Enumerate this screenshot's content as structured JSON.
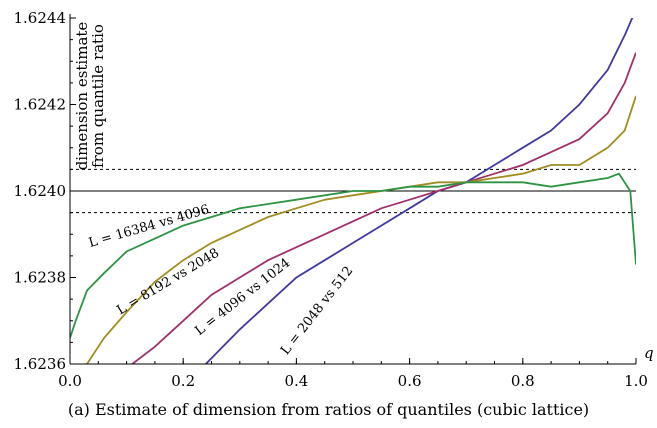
{
  "caption": "(a) Estimate of dimension from ratios of quantiles (cubic lattice)",
  "chart_data": {
    "type": "line",
    "title": "",
    "xlabel": "q",
    "ylabel": "dimension estimate from quantile ratio",
    "xlim": [
      0.0,
      1.0
    ],
    "ylim": [
      1.6236,
      1.6244
    ],
    "x_ticks": [
      "0.0",
      "0.2",
      "0.4",
      "0.6",
      "0.8",
      "1.0"
    ],
    "y_ticks": [
      "1.6236",
      "1.6238",
      "1.6240",
      "1.6242",
      "1.6244"
    ],
    "reference_lines": [
      {
        "y": 1.624,
        "style": "solid"
      },
      {
        "y": 1.62405,
        "style": "dashed"
      },
      {
        "y": 1.62395,
        "style": "dashed"
      }
    ],
    "series": [
      {
        "name": "L = 2048 vs 512",
        "color": "#3f3a9e",
        "x": [
          0.24,
          0.3,
          0.35,
          0.4,
          0.45,
          0.5,
          0.55,
          0.6,
          0.65,
          0.7,
          0.75,
          0.8,
          0.85,
          0.9,
          0.95,
          0.98,
          1.0
        ],
        "y": [
          1.6236,
          1.62368,
          1.62374,
          1.6238,
          1.62384,
          1.62388,
          1.62392,
          1.62396,
          1.624,
          1.62402,
          1.62406,
          1.6241,
          1.62414,
          1.6242,
          1.62428,
          1.62436,
          1.62442
        ]
      },
      {
        "name": "L = 4096 vs 1024",
        "color": "#a0306a",
        "x": [
          0.11,
          0.15,
          0.2,
          0.25,
          0.3,
          0.35,
          0.4,
          0.45,
          0.5,
          0.55,
          0.6,
          0.65,
          0.7,
          0.75,
          0.8,
          0.85,
          0.9,
          0.95,
          0.98,
          1.0
        ],
        "y": [
          1.6236,
          1.62364,
          1.6237,
          1.62376,
          1.6238,
          1.62384,
          1.62387,
          1.6239,
          1.62393,
          1.62396,
          1.62398,
          1.624,
          1.62402,
          1.62404,
          1.62406,
          1.62409,
          1.62412,
          1.62418,
          1.62425,
          1.62432
        ]
      },
      {
        "name": "L = 8192 vs 2048",
        "color": "#a08c20",
        "x": [
          0.03,
          0.06,
          0.1,
          0.15,
          0.2,
          0.25,
          0.3,
          0.35,
          0.4,
          0.45,
          0.5,
          0.55,
          0.6,
          0.65,
          0.7,
          0.75,
          0.8,
          0.85,
          0.9,
          0.95,
          0.98,
          1.0
        ],
        "y": [
          1.6236,
          1.62366,
          1.62372,
          1.62379,
          1.62384,
          1.62388,
          1.62391,
          1.62394,
          1.62396,
          1.62398,
          1.62399,
          1.624,
          1.62401,
          1.62402,
          1.62402,
          1.62403,
          1.62404,
          1.62406,
          1.62406,
          1.6241,
          1.62414,
          1.62422
        ]
      },
      {
        "name": "L = 16384 vs 4096",
        "color": "#2e9444",
        "x": [
          0.0,
          0.01,
          0.03,
          0.06,
          0.1,
          0.15,
          0.2,
          0.25,
          0.3,
          0.35,
          0.4,
          0.45,
          0.5,
          0.55,
          0.6,
          0.65,
          0.7,
          0.75,
          0.8,
          0.85,
          0.9,
          0.95,
          0.97,
          0.99,
          1.0
        ],
        "y": [
          1.62366,
          1.6237,
          1.62377,
          1.62381,
          1.62386,
          1.62389,
          1.62392,
          1.62394,
          1.62396,
          1.62397,
          1.62398,
          1.62399,
          1.624,
          1.624,
          1.62401,
          1.62401,
          1.62402,
          1.62402,
          1.62402,
          1.62401,
          1.62402,
          1.62403,
          1.62404,
          1.624,
          1.62383
        ]
      }
    ],
    "annotations": [
      "L = 16384 vs 4096",
      "L = 8192 vs 2048",
      "L = 4096 vs 1024",
      "L = 2048 vs 512"
    ],
    "grid": false,
    "legend": "none"
  }
}
